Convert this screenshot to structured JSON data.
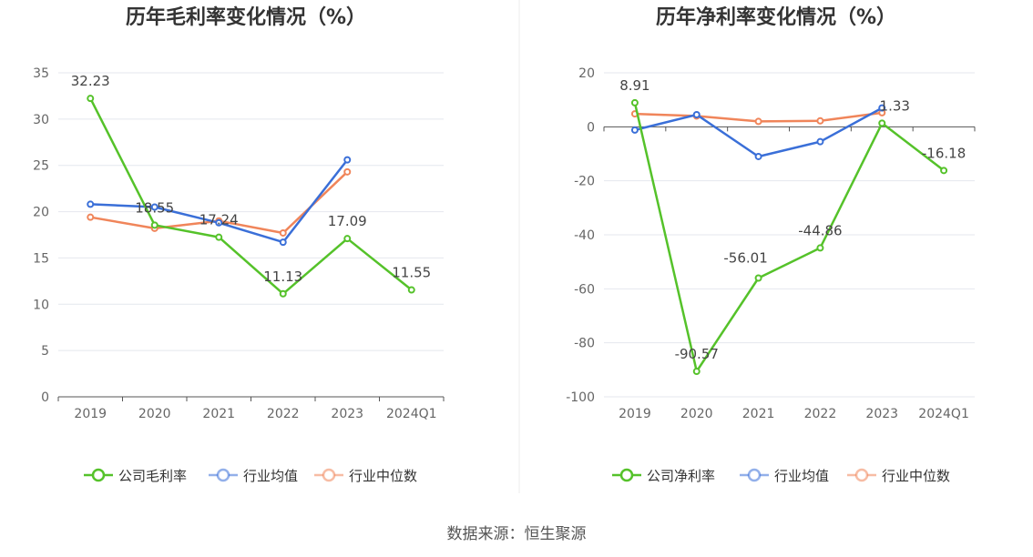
{
  "source": "数据来源：恒生聚源",
  "colors": {
    "company": "#55c22a",
    "industry_avg": "#3a6fd8",
    "industry_median": "#f0855a",
    "grid": "#e4e7ee",
    "axis": "#555555"
  },
  "chart_data": [
    {
      "type": "line",
      "title": "历年毛利率变化情况（%）",
      "categories": [
        "2019",
        "2020",
        "2021",
        "2022",
        "2023",
        "2024Q1"
      ],
      "ylim": [
        0,
        35
      ],
      "yticks": [
        0,
        5,
        10,
        15,
        20,
        25,
        30,
        35
      ],
      "grid": true,
      "legend_position": "bottom-center",
      "series": [
        {
          "name": "公司毛利率",
          "values": [
            32.23,
            18.55,
            17.24,
            11.13,
            17.09,
            11.55
          ],
          "labels": [
            "32.23",
            "18.55",
            "17.24",
            "11.13",
            "17.09",
            "11.55"
          ]
        },
        {
          "name": "行业均值",
          "values": [
            20.8,
            20.5,
            18.8,
            16.7,
            25.6,
            null
          ]
        },
        {
          "name": "行业中位数",
          "values": [
            19.4,
            18.2,
            19.0,
            17.7,
            24.3,
            null
          ]
        }
      ]
    },
    {
      "type": "line",
      "title": "历年净利率变化情况（%）",
      "categories": [
        "2019",
        "2020",
        "2021",
        "2022",
        "2023",
        "2024Q1"
      ],
      "ylim": [
        -100,
        20
      ],
      "yticks": [
        -100,
        -80,
        -60,
        -40,
        -20,
        0,
        20
      ],
      "grid": true,
      "legend_position": "bottom-center",
      "series": [
        {
          "name": "公司净利率",
          "values": [
            8.91,
            -90.57,
            -56.01,
            -44.86,
            1.33,
            -16.18
          ],
          "labels": [
            "8.91",
            "-90.57",
            "-56.01",
            "-44.86",
            "1.33",
            "-16.18"
          ]
        },
        {
          "name": "行业均值",
          "values": [
            -1.2,
            4.5,
            -11.0,
            -5.5,
            7.0,
            null
          ]
        },
        {
          "name": "行业中位数",
          "values": [
            4.8,
            4.0,
            2.0,
            2.2,
            5.2,
            null
          ]
        }
      ]
    }
  ]
}
